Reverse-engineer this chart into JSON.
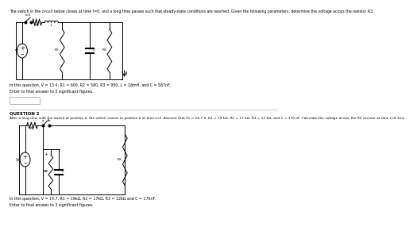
{
  "title_text": "The switch in the circuit below closes at time t=0, and a long time passes such that steady-state conditions are reached. Given the following parameters, determine the voltage across the resistor R3.",
  "q1_params": "In this question, V = 13.4, R1 = 600, R2 = 580, R3 = 950, L = 18mH, and C = 587nF.",
  "q1_instruction": "Enter to final answer to 3 significant figures.",
  "q2_header": "QUESTION 2",
  "q2_text": "After a long time with the switch at position a, the switch moves to position b at time t=0. Assume that Vs = 14.7 V, R1 = 19 kΩ, R2 = 17 kΩ, R3 = 12 kΩ, and C = 170 nF. Calculate the voltage across the R2 resistor at time t=0.1ms.",
  "q2_params": "In this question, V = 14.7, R1 = 19kΩ, R2 = 17kΩ, R3 = 12kΩ and C = 170nF.",
  "q2_instruction": "Enter to final answer to 3 significant figures.",
  "bg_color": "#ffffff",
  "text_color": "#000000",
  "circuit_color": "#000000",
  "divider_color": "#aaaaaa"
}
